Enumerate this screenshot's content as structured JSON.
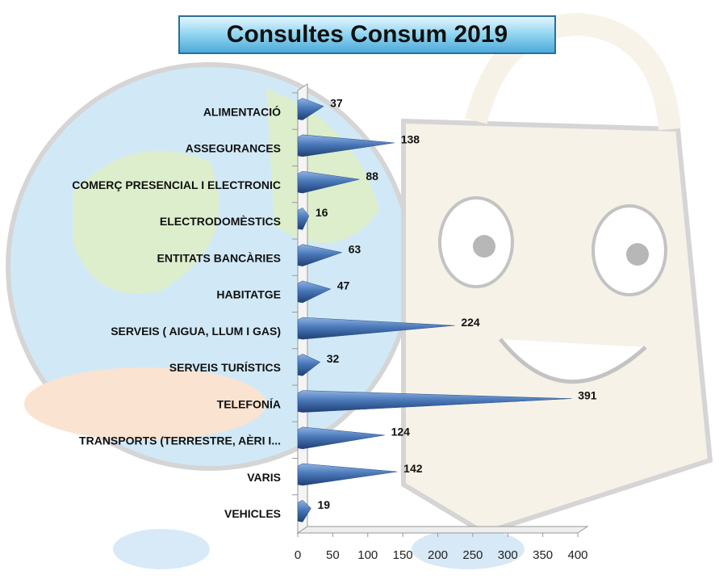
{
  "chart_data": {
    "type": "bar",
    "orientation": "horizontal",
    "title": "Consultes Consum 2019",
    "categories": [
      "ALIMENTACIÓ",
      "ASSEGURANCES",
      "COMERÇ PRESENCIAL I ELECTRONIC",
      "ELECTRODOMÈSTICS",
      "ENTITATS BANCÀRIES",
      "HABITATGE",
      "SERVEIS  ( AIGUA, LLUM I GAS)",
      "SERVEIS TURÍSTICS",
      "TELEFONÍA",
      "TRANSPORTS (TERRESTRE, AÈRI I...",
      "VARIS",
      "VEHICLES"
    ],
    "values": [
      37,
      138,
      88,
      16,
      63,
      47,
      224,
      32,
      391,
      124,
      142,
      19
    ],
    "color": "#4a78b8",
    "xlim": [
      0,
      400
    ],
    "xticks": [
      0,
      50,
      100,
      150,
      200,
      250,
      300,
      350,
      400
    ]
  }
}
